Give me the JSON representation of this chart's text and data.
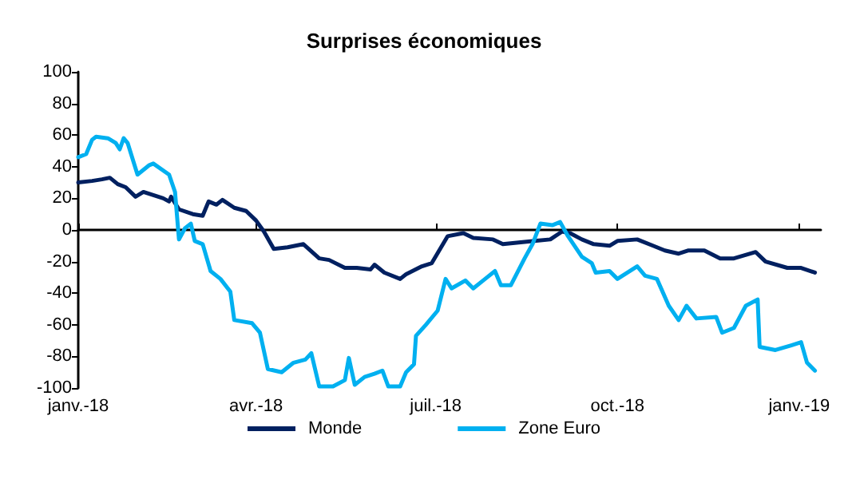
{
  "chart_data": {
    "type": "line",
    "title": "Surprises économiques",
    "xlim": [
      "2018-01-01",
      "2019-01-12"
    ],
    "xticks": [
      {
        "value": "2018-01-01",
        "label": "janv.-18"
      },
      {
        "value": "2018-04-01",
        "label": "avr.-18"
      },
      {
        "value": "2018-07-01",
        "label": "juil.-18"
      },
      {
        "value": "2018-10-01",
        "label": "oct.-18"
      },
      {
        "value": "2019-01-01",
        "label": "janv.-19"
      }
    ],
    "ylim": [
      -100,
      100
    ],
    "yticks": [
      -100,
      -80,
      -60,
      -40,
      -20,
      0,
      20,
      40,
      60,
      80,
      100
    ],
    "legend": "bottom",
    "marker": "none",
    "line_style": "solid",
    "series": [
      {
        "name": "Monde",
        "color": "#002060",
        "x": [
          "2018-01-01",
          "2018-01-08",
          "2018-01-13",
          "2018-01-17",
          "2018-01-21",
          "2018-01-25",
          "2018-01-30",
          "2018-02-03",
          "2018-02-08",
          "2018-02-13",
          "2018-02-16",
          "2018-02-17",
          "2018-02-21",
          "2018-02-28",
          "2018-03-05",
          "2018-03-08",
          "2018-03-12",
          "2018-03-15",
          "2018-03-21",
          "2018-03-27",
          "2018-04-01",
          "2018-04-05",
          "2018-04-10",
          "2018-04-17",
          "2018-04-25",
          "2018-05-03",
          "2018-05-08",
          "2018-05-16",
          "2018-05-22",
          "2018-05-29",
          "2018-05-31",
          "2018-06-05",
          "2018-06-13",
          "2018-06-16",
          "2018-06-24",
          "2018-06-29",
          "2018-07-07",
          "2018-07-15",
          "2018-07-20",
          "2018-07-30",
          "2018-08-04",
          "2018-08-12",
          "2018-08-20",
          "2018-08-28",
          "2018-09-03",
          "2018-09-07",
          "2018-09-13",
          "2018-09-19",
          "2018-09-27",
          "2018-10-01",
          "2018-10-11",
          "2018-10-19",
          "2018-10-25",
          "2018-11-01",
          "2018-11-06",
          "2018-11-14",
          "2018-11-22",
          "2018-11-29",
          "2018-12-10",
          "2018-12-15",
          "2018-12-26",
          "2019-01-02",
          "2019-01-09"
        ],
        "values": [
          30,
          31,
          32,
          33,
          29,
          27,
          21,
          24,
          22,
          20,
          18,
          21,
          13,
          10,
          9,
          18,
          16,
          19,
          14,
          12,
          6,
          -1,
          -12,
          -11,
          -9,
          -18,
          -19,
          -24,
          -24,
          -25,
          -22,
          -27,
          -31,
          -28,
          -23,
          -21,
          -4,
          -2,
          -5,
          -6,
          -9,
          -8,
          -7,
          -6,
          -1,
          -2,
          -6,
          -9,
          -10,
          -7,
          -6,
          -10,
          -13,
          -15,
          -13,
          -13,
          -18,
          -18,
          -14,
          -20,
          -24,
          -24,
          -27
        ]
      },
      {
        "name": "Zone Euro",
        "color": "#00b0f0",
        "x": [
          "2018-01-01",
          "2018-01-05",
          "2018-01-08",
          "2018-01-10",
          "2018-01-16",
          "2018-01-20",
          "2018-01-22",
          "2018-01-24",
          "2018-01-26",
          "2018-01-31",
          "2018-02-06",
          "2018-02-08",
          "2018-02-16",
          "2018-02-19",
          "2018-02-21",
          "2018-02-24",
          "2018-02-27",
          "2018-03-01",
          "2018-03-05",
          "2018-03-09",
          "2018-03-14",
          "2018-03-19",
          "2018-03-21",
          "2018-03-30",
          "2018-04-03",
          "2018-04-07",
          "2018-04-14",
          "2018-04-20",
          "2018-04-26",
          "2018-04-29",
          "2018-05-03",
          "2018-05-10",
          "2018-05-16",
          "2018-05-18",
          "2018-05-21",
          "2018-05-26",
          "2018-05-31",
          "2018-06-04",
          "2018-06-07",
          "2018-06-13",
          "2018-06-16",
          "2018-06-20",
          "2018-06-21",
          "2018-06-26",
          "2018-07-02",
          "2018-07-06",
          "2018-07-09",
          "2018-07-16",
          "2018-07-20",
          "2018-07-26",
          "2018-07-31",
          "2018-08-03",
          "2018-08-08",
          "2018-08-15",
          "2018-08-19",
          "2018-08-23",
          "2018-08-29",
          "2018-09-02",
          "2018-09-06",
          "2018-09-13",
          "2018-09-18",
          "2018-09-20",
          "2018-09-27",
          "2018-10-01",
          "2018-10-11",
          "2018-10-15",
          "2018-10-21",
          "2018-10-27",
          "2018-11-01",
          "2018-11-05",
          "2018-11-10",
          "2018-11-20",
          "2018-11-23",
          "2018-11-29",
          "2018-12-05",
          "2018-12-11",
          "2018-12-12",
          "2018-12-20",
          "2018-12-28",
          "2019-01-02",
          "2019-01-05",
          "2019-01-09"
        ],
        "values": [
          46,
          48,
          57,
          59,
          58,
          55,
          51,
          58,
          55,
          35,
          41,
          42,
          35,
          24,
          -6,
          1,
          4,
          -7,
          -9,
          -26,
          -31,
          -39,
          -57,
          -59,
          -65,
          -88,
          -90,
          -84,
          -82,
          -78,
          -99,
          -99,
          -95,
          -81,
          -98,
          -93,
          -91,
          -89,
          -99,
          -99,
          -90,
          -85,
          -67,
          -60,
          -51,
          -31,
          -37,
          -32,
          -37,
          -31,
          -26,
          -35,
          -35,
          -18,
          -9,
          4,
          3,
          5,
          -4,
          -17,
          -21,
          -27,
          -26,
          -31,
          -23,
          -29,
          -31,
          -48,
          -57,
          -48,
          -56,
          -55,
          -65,
          -62,
          -48,
          -44,
          -74,
          -76,
          -73,
          -71,
          -84,
          -89
        ]
      }
    ]
  }
}
